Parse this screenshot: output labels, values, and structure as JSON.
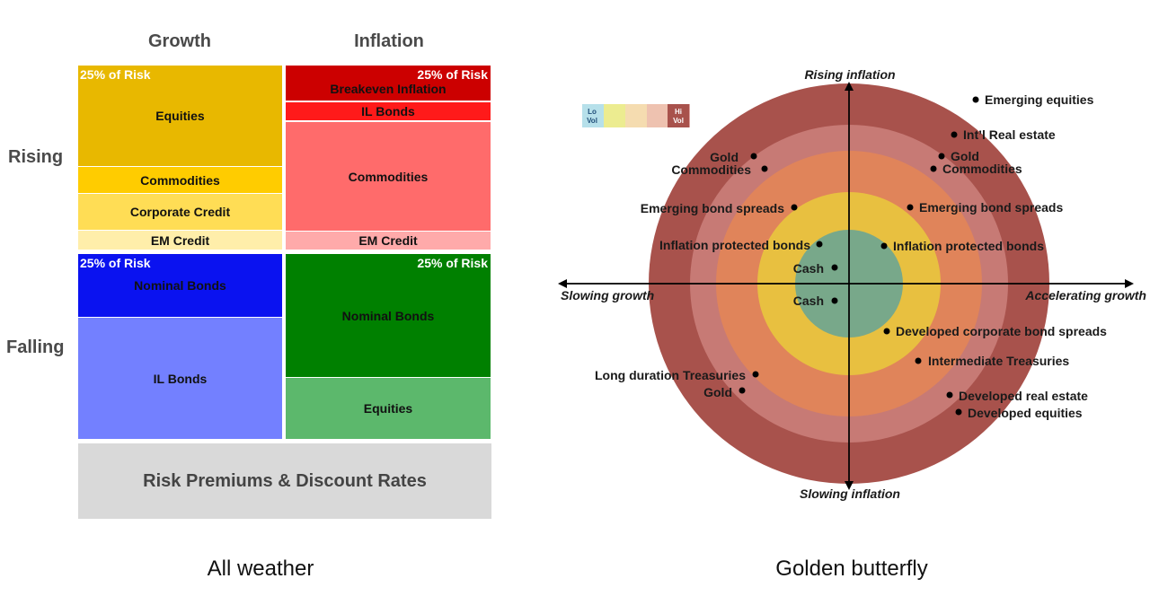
{
  "all_weather": {
    "caption": "All weather",
    "col_headers": [
      "Growth",
      "Inflation"
    ],
    "row_headers": [
      "Rising",
      "Falling"
    ],
    "risk_label": "25% of Risk",
    "rising_growth": [
      "Equities",
      "Commodities",
      "Corporate Credit",
      "EM Credit"
    ],
    "rising_inflation": [
      "Breakeven Inflation",
      "IL Bonds",
      "Commodities",
      "EM Credit"
    ],
    "falling_growth": [
      "Nominal Bonds",
      "IL Bonds"
    ],
    "falling_inflation": [
      "Nominal Bonds",
      "Equities"
    ],
    "footer": "Risk Premiums & Discount Rates",
    "colors": {
      "rising_growth": [
        "#e8b800",
        "#ffcc00",
        "#ffdd55",
        "#ffeeaa"
      ],
      "rising_inflation": [
        "#cc0000",
        "#ff1a1a",
        "#ff6b6b",
        "#ffaaaa"
      ],
      "falling_growth": [
        "#0a12f0",
        "#7380ff"
      ],
      "falling_inflation": [
        "#008000",
        "#5cb86c"
      ],
      "footer": "#d9d9d9"
    }
  },
  "golden_butterfly": {
    "caption": "Golden butterfly",
    "axes": {
      "top": "Rising inflation",
      "bottom": "Slowing inflation",
      "left": "Slowing growth",
      "right": "Accelerating growth"
    },
    "legend": {
      "low": [
        "Lo",
        "Vol"
      ],
      "high": [
        "Hi",
        "Vol"
      ]
    },
    "ring_colors": [
      "#a8524c",
      "#c77a75",
      "#e0845a",
      "#e8c040",
      "#78a88a"
    ],
    "points": [
      {
        "label": "Emerging equities",
        "side": "right"
      },
      {
        "label": "Int’l Real estate",
        "side": "right"
      },
      {
        "label": "Gold",
        "side": "right"
      },
      {
        "label": "Commodities",
        "side": "right"
      },
      {
        "label": "Gold",
        "side": "left"
      },
      {
        "label": "Commodities",
        "side": "left"
      },
      {
        "label": "Emerging bond spreads",
        "side": "left"
      },
      {
        "label": "Emerging bond spreads",
        "side": "right"
      },
      {
        "label": "Inflation protected bonds",
        "side": "left"
      },
      {
        "label": "Inflation protected bonds",
        "side": "right"
      },
      {
        "label": "Cash",
        "side": "left"
      },
      {
        "label": "Cash",
        "side": "left"
      },
      {
        "label": "Developed corporate bond spreads",
        "side": "right"
      },
      {
        "label": "Intermediate Treasuries",
        "side": "right"
      },
      {
        "label": "Long duration Treasuries",
        "side": "left"
      },
      {
        "label": "Gold",
        "side": "left"
      },
      {
        "label": "Developed real estate",
        "side": "right"
      },
      {
        "label": "Developed equities",
        "side": "right"
      }
    ]
  }
}
